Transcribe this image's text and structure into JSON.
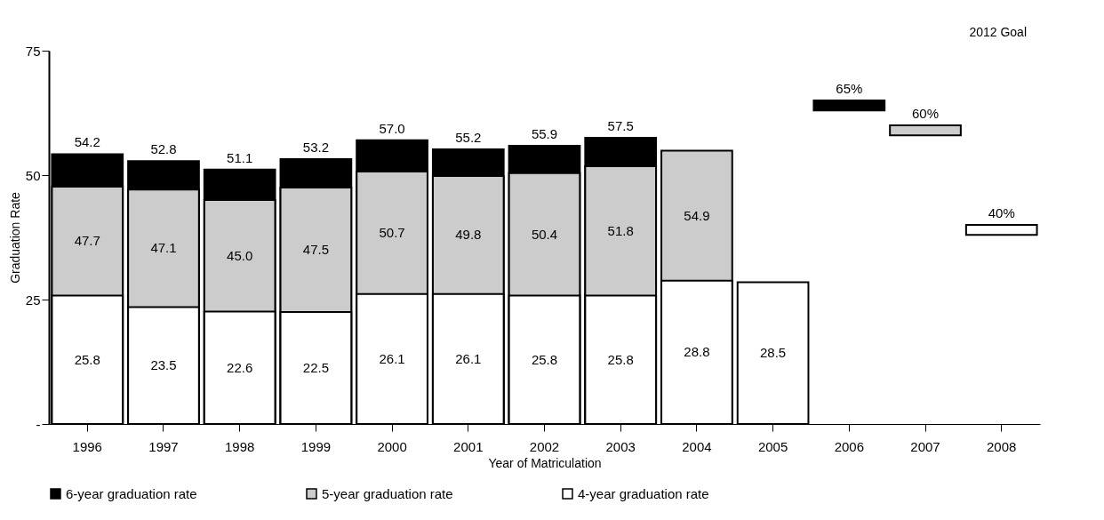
{
  "chart_data": {
    "type": "bar",
    "xlabel": "Year of Matriculation",
    "ylabel": "Graduation Rate",
    "categories": [
      "1996",
      "1997",
      "1998",
      "1999",
      "2000",
      "2001",
      "2002",
      "2003",
      "2004",
      "2005",
      "2006",
      "2007",
      "2008"
    ],
    "series": [
      {
        "name": "6-year graduation rate",
        "color": "#000000",
        "values": [
          54.2,
          52.8,
          51.1,
          53.2,
          57.0,
          55.2,
          55.9,
          57.5,
          null,
          null,
          2,
          null,
          null
        ],
        "base": [
          null,
          null,
          null,
          null,
          null,
          null,
          null,
          null,
          null,
          null,
          63,
          null,
          null
        ],
        "value_labels": [
          "54.2",
          "52.8",
          "51.1",
          "53.2",
          "57.0",
          "55.2",
          "55.9",
          "57.5",
          null,
          null,
          "65%",
          null,
          null
        ]
      },
      {
        "name": "5-year graduation rate",
        "color": "#cccccc",
        "values": [
          47.7,
          47.1,
          45.0,
          47.5,
          50.7,
          49.8,
          50.4,
          51.8,
          54.9,
          null,
          null,
          2,
          null
        ],
        "base": [
          null,
          null,
          null,
          null,
          null,
          null,
          null,
          null,
          null,
          null,
          null,
          58,
          null
        ],
        "value_labels": [
          "47.7",
          "47.1",
          "45.0",
          "47.5",
          "50.7",
          "49.8",
          "50.4",
          "51.8",
          "54.9",
          null,
          null,
          "60%",
          null
        ]
      },
      {
        "name": "4-year graduation rate",
        "color": "#ffffff",
        "values": [
          25.8,
          23.5,
          22.6,
          22.5,
          26.1,
          26.1,
          25.8,
          25.8,
          28.8,
          28.5,
          null,
          null,
          2
        ],
        "base": [
          null,
          null,
          null,
          null,
          null,
          null,
          null,
          null,
          null,
          null,
          null,
          null,
          38
        ],
        "value_labels": [
          "25.8",
          "23.5",
          "22.6",
          "22.5",
          "26.1",
          "26.1",
          "25.8",
          "25.8",
          "28.8",
          "28.5",
          null,
          null,
          "40%"
        ]
      }
    ],
    "ylim": [
      0,
      75
    ],
    "yticks": [
      {
        "value": 0,
        "label": "-"
      },
      25,
      50,
      75
    ],
    "grid": false,
    "legend": "bottom",
    "annotations": [
      "2012 Goal"
    ]
  }
}
